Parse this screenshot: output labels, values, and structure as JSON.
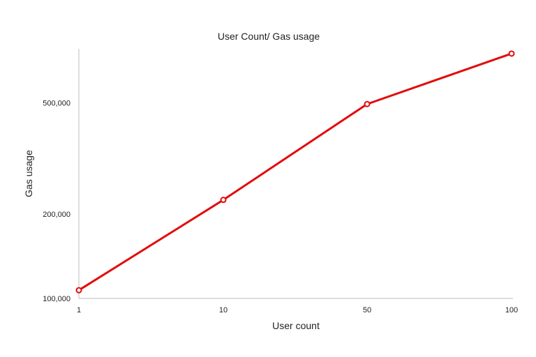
{
  "chart_data": {
    "type": "line",
    "title": "User Count/ Gas usage",
    "xlabel": "User count",
    "ylabel": "Gas usage",
    "categories": [
      "1",
      "10",
      "50",
      "100"
    ],
    "series": [
      {
        "values": [
          107000,
          225000,
          495000,
          750000
        ],
        "color": "#e30b0b"
      }
    ],
    "ytick_labels": [
      "100,000",
      "200,000",
      "500,000"
    ],
    "ytick_values": [
      100000,
      200000,
      500000
    ],
    "yscale": "log",
    "ylim": [
      100000,
      780000
    ],
    "grid": false,
    "legend": "none"
  }
}
